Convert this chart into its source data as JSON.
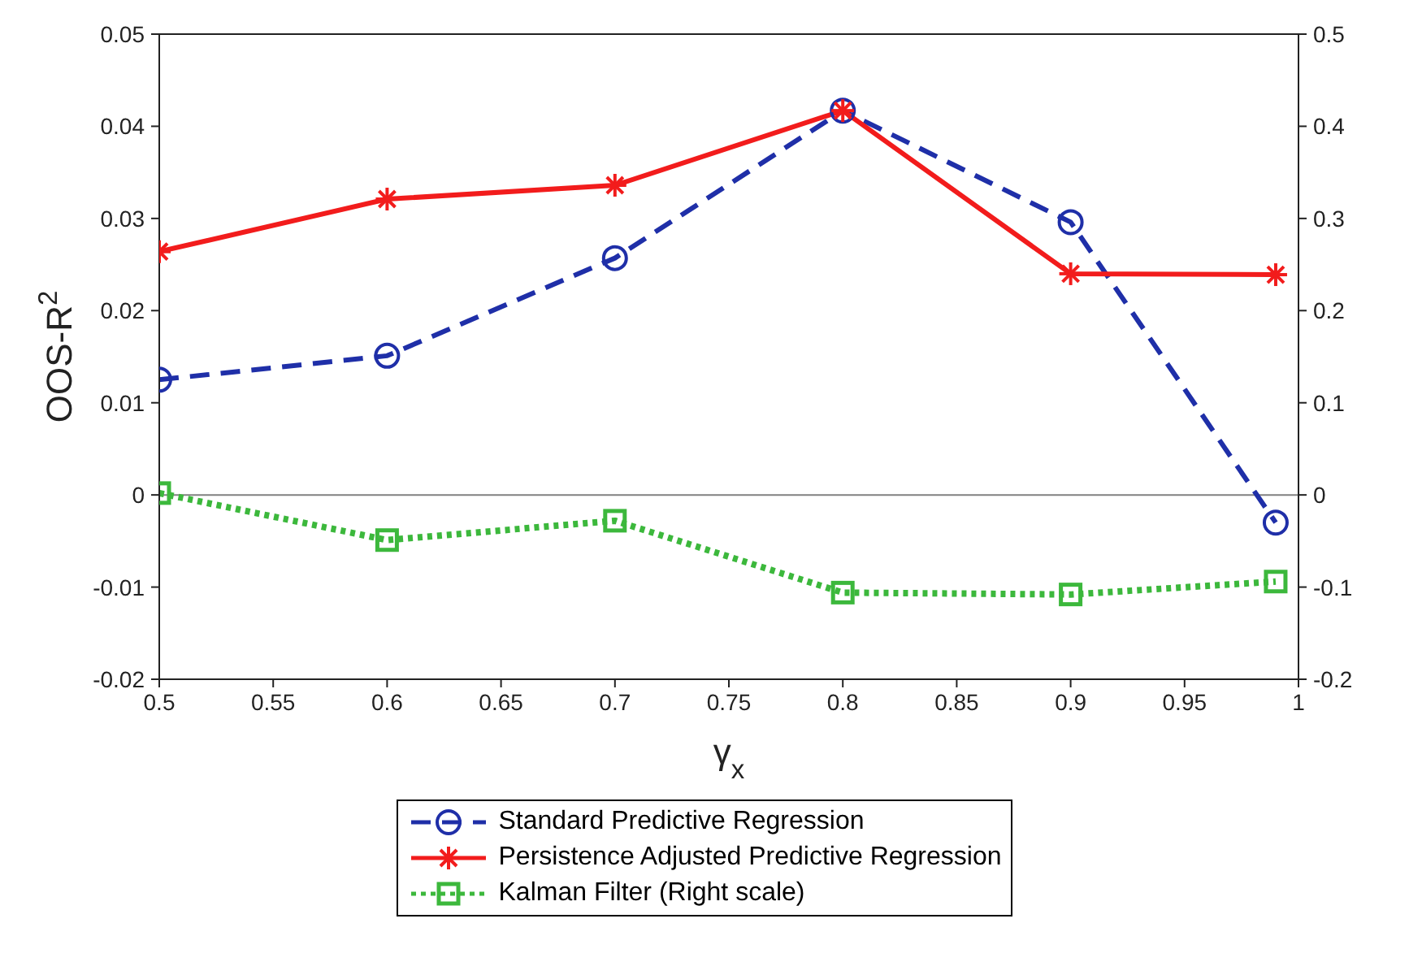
{
  "chart_data": {
    "type": "line",
    "xlabel": "γ$_{x}$",
    "ylabel": "OOS-R$^{2}$",
    "x": [
      0.5,
      0.6,
      0.7,
      0.8,
      0.9,
      0.99
    ],
    "xlim": [
      0.5,
      1
    ],
    "xticks": [
      0.5,
      0.55,
      0.6,
      0.65,
      0.7,
      0.75,
      0.8,
      0.85,
      0.9,
      0.95,
      1
    ],
    "ylim": [
      -0.02,
      0.05
    ],
    "yticks": [
      -0.02,
      -0.01,
      0,
      0.01,
      0.02,
      0.03,
      0.04,
      0.05
    ],
    "y2lim": [
      -0.2,
      0.5
    ],
    "y2ticks": [
      -0.2,
      -0.1,
      0,
      0.1,
      0.2,
      0.3,
      0.4,
      0.5
    ],
    "ref_lines": [
      {
        "axis": "y",
        "value": 0,
        "color": "#808080"
      }
    ],
    "legend": "bottom",
    "grid": false,
    "series": [
      {
        "name": "Standard Predictive Regression",
        "color": "#1f2fa8",
        "marker": "circle",
        "line_style": "dashed",
        "values": [
          0.0125,
          0.0151,
          0.0257,
          0.0417,
          0.0296,
          -0.003
        ]
      },
      {
        "name": "Persistence Adjusted Predictive Regression",
        "color": "#f21c1c",
        "marker": "cross",
        "line_style": "solid",
        "values": [
          0.0264,
          0.0321,
          0.0336,
          0.0417,
          0.024,
          0.0239
        ]
      },
      {
        "name": "Kalman Filter (Right scale)",
        "color": "#3cb83c",
        "marker": "square",
        "line_style": "dotted",
        "axis": "y2",
        "values": [
          0.002,
          -0.049,
          -0.028,
          -0.106,
          -0.108,
          -0.094
        ]
      }
    ]
  }
}
